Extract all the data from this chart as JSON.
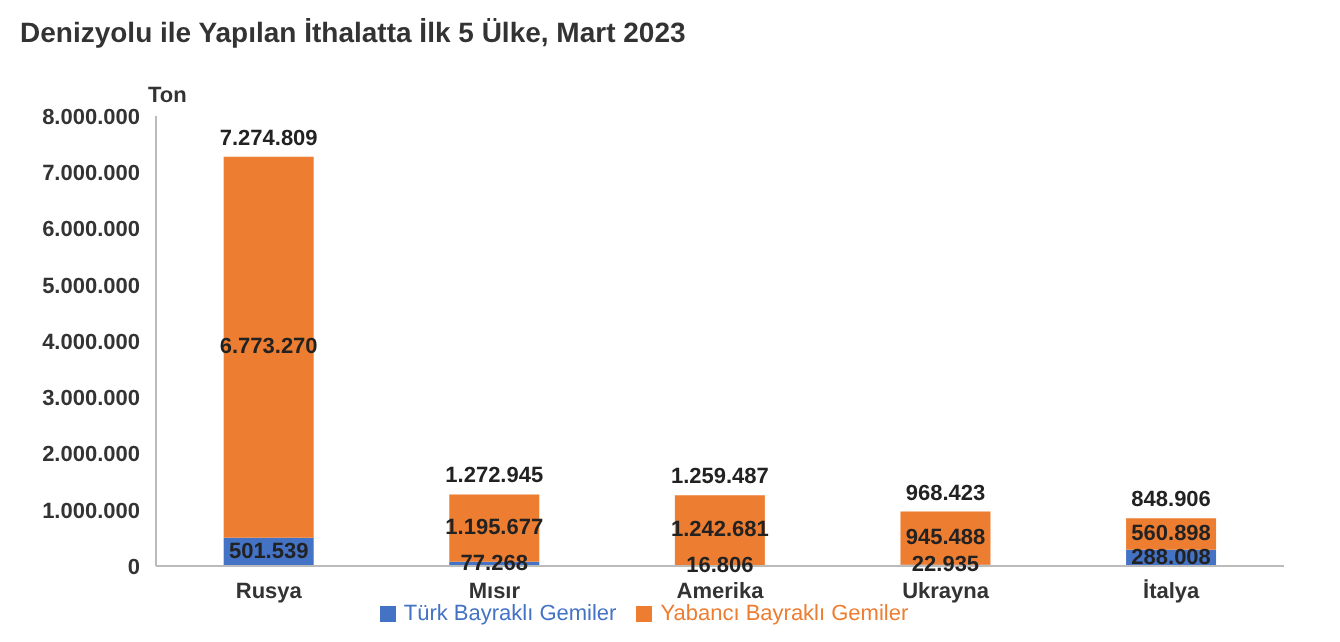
{
  "chart_data": {
    "type": "bar",
    "title": "Denizyolu ile Yapılan İthalatta İlk 5 Ülke, Mart 2023",
    "ylabel": "Ton",
    "stacked": true,
    "categories": [
      "Rusya",
      "Mısır",
      "Amerika",
      "Ukrayna",
      "İtalya"
    ],
    "series": [
      {
        "name": "Türk Bayraklı Gemiler",
        "color": "#4472c4",
        "values": [
          501539,
          77268,
          16806,
          22935,
          288008
        ],
        "value_labels": [
          "501.539",
          "77.268",
          "16.806",
          "22.935",
          "288.008"
        ]
      },
      {
        "name": "Yabancı Bayraklı Gemiler",
        "color": "#ed7d31",
        "values": [
          6773270,
          1195677,
          1242681,
          945488,
          560898
        ],
        "value_labels": [
          "6.773.270",
          "1.195.677",
          "1.242.681",
          "945.488",
          "560.898"
        ]
      }
    ],
    "totals": [
      "7.274.809",
      "1.272.945",
      "1.259.487",
      "968.423",
      "848.906"
    ],
    "ylim": [
      0,
      8000000
    ],
    "yticks": [
      {
        "value": 0,
        "label": "0"
      },
      {
        "value": 1000000,
        "label": "1.000.000"
      },
      {
        "value": 2000000,
        "label": "2.000.000"
      },
      {
        "value": 3000000,
        "label": "3.000.000"
      },
      {
        "value": 4000000,
        "label": "4.000.000"
      },
      {
        "value": 5000000,
        "label": "5.000.000"
      },
      {
        "value": 6000000,
        "label": "6.000.000"
      },
      {
        "value": 7000000,
        "label": "7.000.000"
      },
      {
        "value": 8000000,
        "label": "8.000.000"
      }
    ],
    "grid": false,
    "legend": "bottom"
  }
}
